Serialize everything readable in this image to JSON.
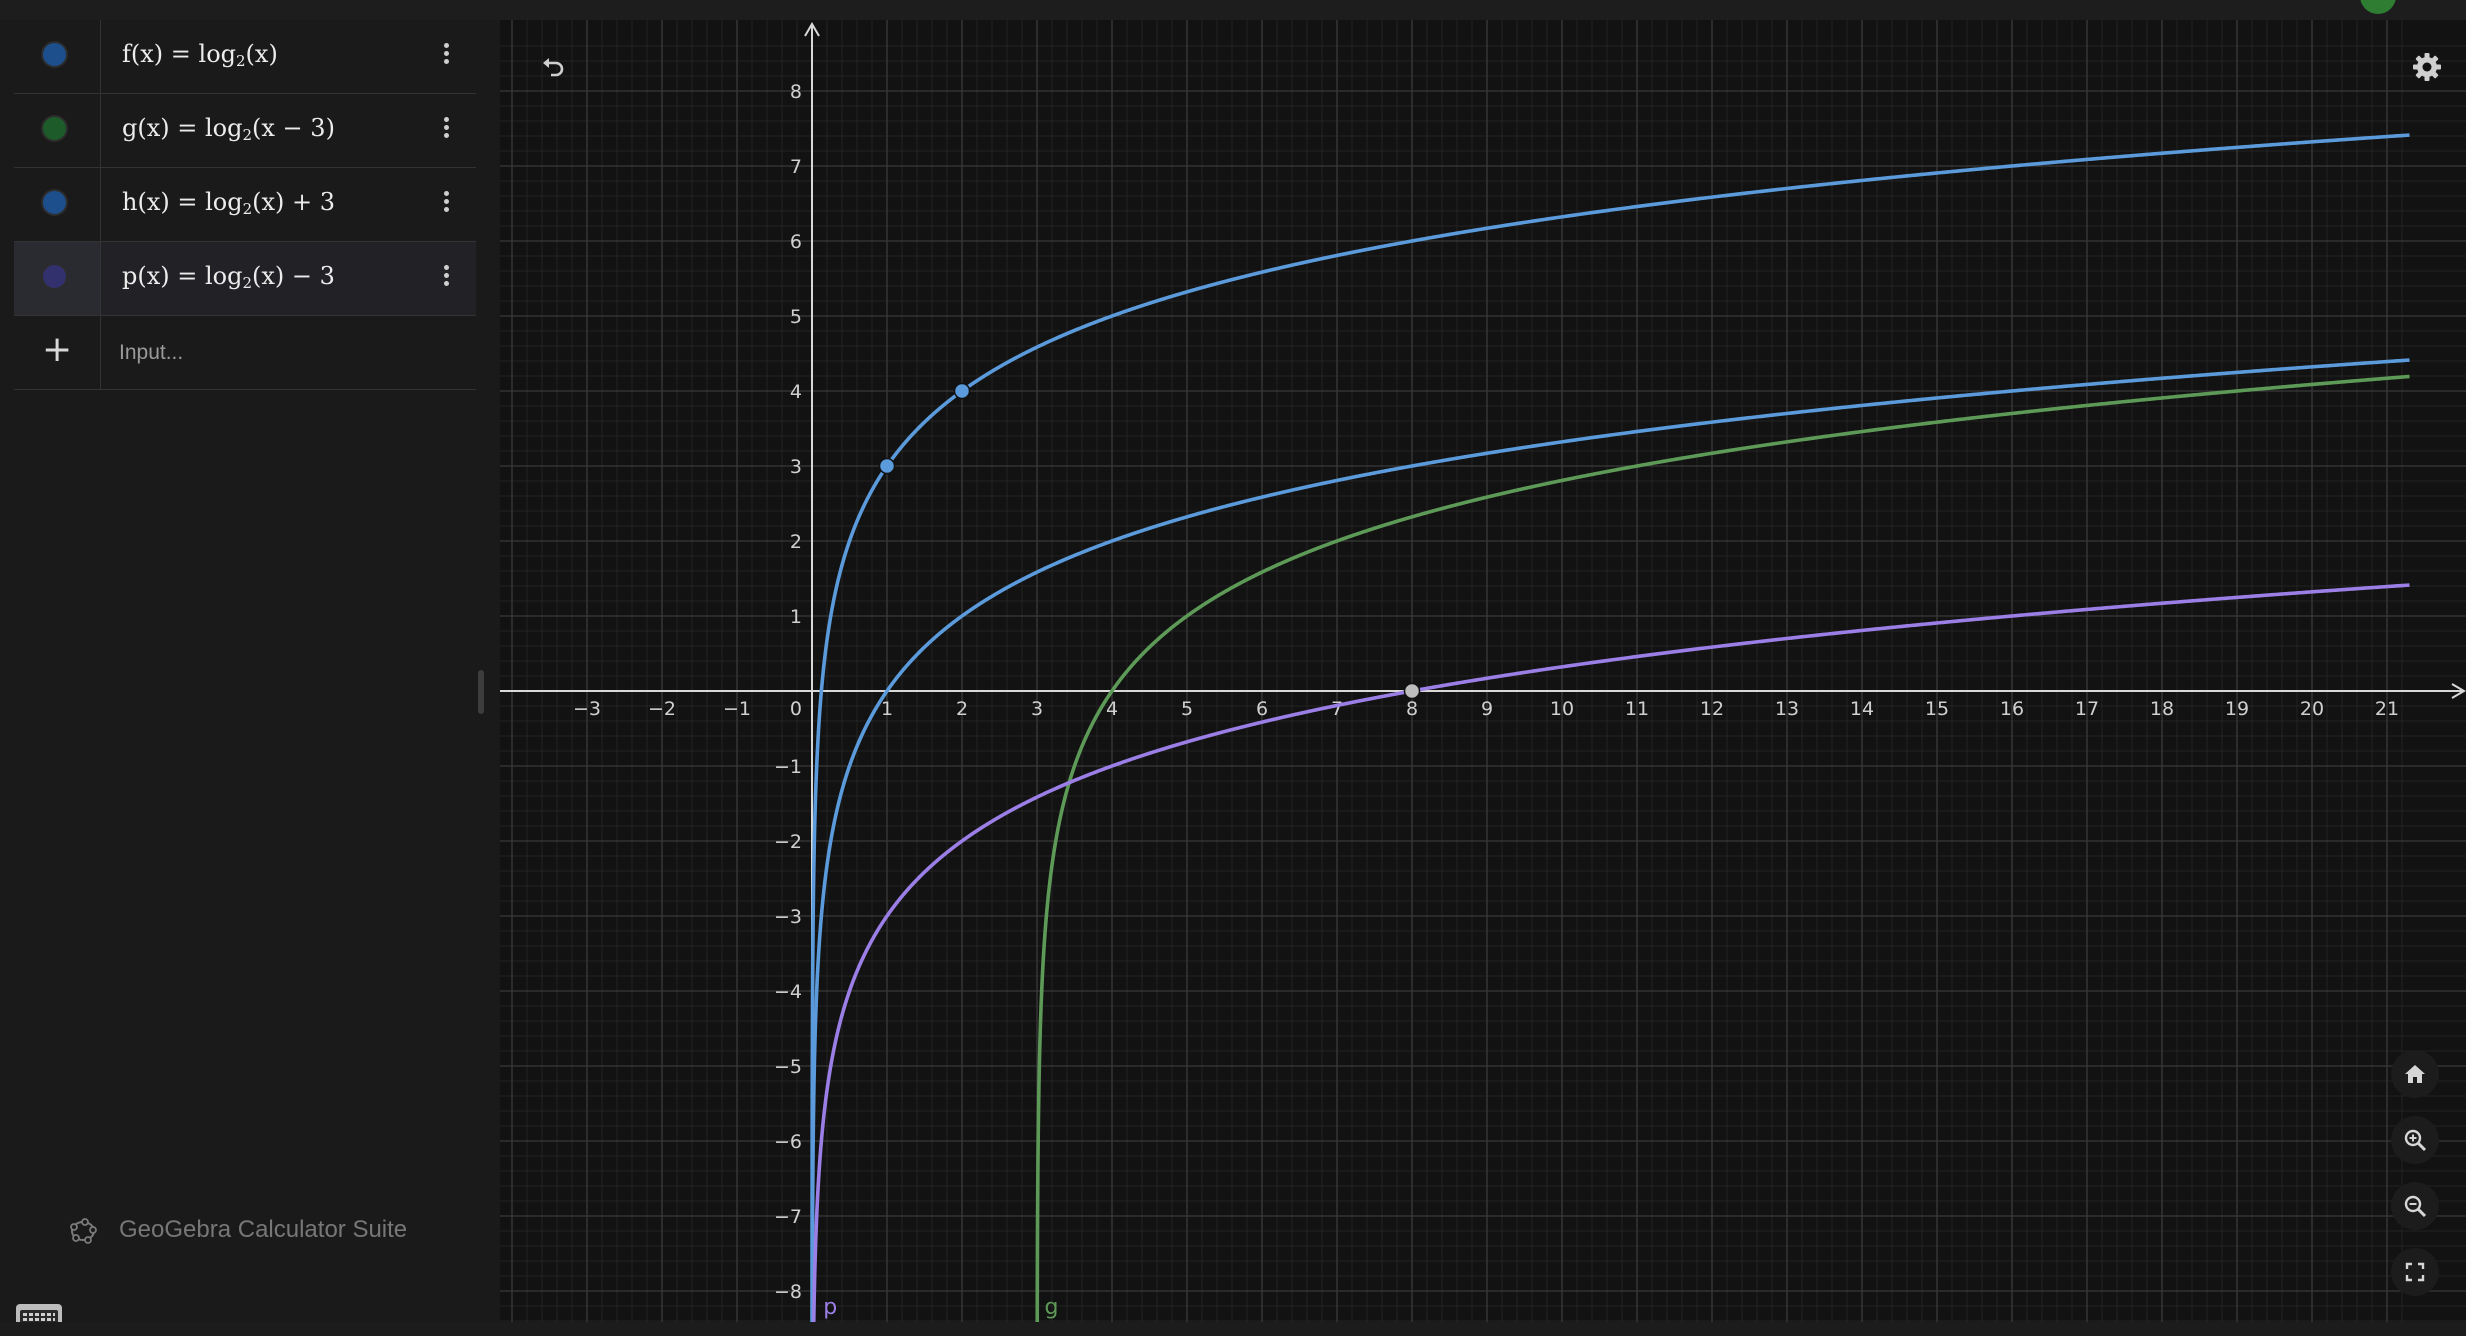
{
  "algebra": {
    "rows": [
      {
        "name": "f",
        "text": [
          "f(x) = log",
          "2",
          "(x)"
        ],
        "color": "#1d4f8c"
      },
      {
        "name": "g",
        "text": [
          "g(x) = log",
          "2",
          "(x − 3)"
        ],
        "color": "#1d5c2a"
      },
      {
        "name": "h",
        "text": [
          "h(x) = log",
          "2",
          "(x) + 3"
        ],
        "color": "#1d4f8c"
      },
      {
        "name": "p",
        "text": [
          "p(x) = log",
          "2",
          "(x) − 3"
        ],
        "color": "#33306e"
      }
    ],
    "input_placeholder": "Input...",
    "add_icon": "plus-icon",
    "menu_icon": "vertical-dots-icon"
  },
  "brand": {
    "text": "GeoGebra Calculator Suite",
    "icon": "geogebra-logo-icon"
  },
  "graph": {
    "x_range": [
      -4.3,
      21.3
    ],
    "y_range": [
      -8.4,
      8.8
    ],
    "x_ticks": [
      -3,
      -2,
      -1,
      1,
      2,
      3,
      4,
      5,
      6,
      7,
      8,
      9,
      10,
      11,
      12,
      13,
      14,
      15,
      16,
      17,
      18,
      19,
      20,
      21
    ],
    "y_ticks": [
      -8,
      -7,
      -6,
      -5,
      -4,
      -3,
      -2,
      -1,
      1,
      2,
      3,
      4,
      5,
      6,
      7,
      8
    ],
    "origin_label": "0",
    "grid": true,
    "curves": [
      {
        "name": "f",
        "shift": 0,
        "x_offset": 0,
        "color": "#5b9bdc"
      },
      {
        "name": "g",
        "shift": 0,
        "x_offset": 3,
        "color": "#5e9a57"
      },
      {
        "name": "h",
        "shift": 3,
        "x_offset": 0,
        "color": "#5b9bdc"
      },
      {
        "name": "p",
        "shift": -3,
        "x_offset": 0,
        "color": "#9b7fe6"
      }
    ],
    "points": [
      {
        "x": 1,
        "y": 3,
        "color": "#5b9bdc"
      },
      {
        "x": 2,
        "y": 4,
        "color": "#5b9bdc"
      },
      {
        "x": 8,
        "y": 0,
        "color": "#bdbdbd"
      }
    ],
    "curve_labels": [
      {
        "text": "p",
        "x": 0.15,
        "y": -8.2,
        "color": "#9b7fe6"
      },
      {
        "text": "g",
        "x": 3.1,
        "y": -8.2,
        "color": "#5e9a57"
      }
    ]
  },
  "buttons": {
    "undo": "undo-icon",
    "settings": "gear-icon",
    "home": "home-icon",
    "zoom_in": "zoom-in-icon",
    "zoom_out": "zoom-out-icon",
    "fullscreen": "fullscreen-icon"
  }
}
